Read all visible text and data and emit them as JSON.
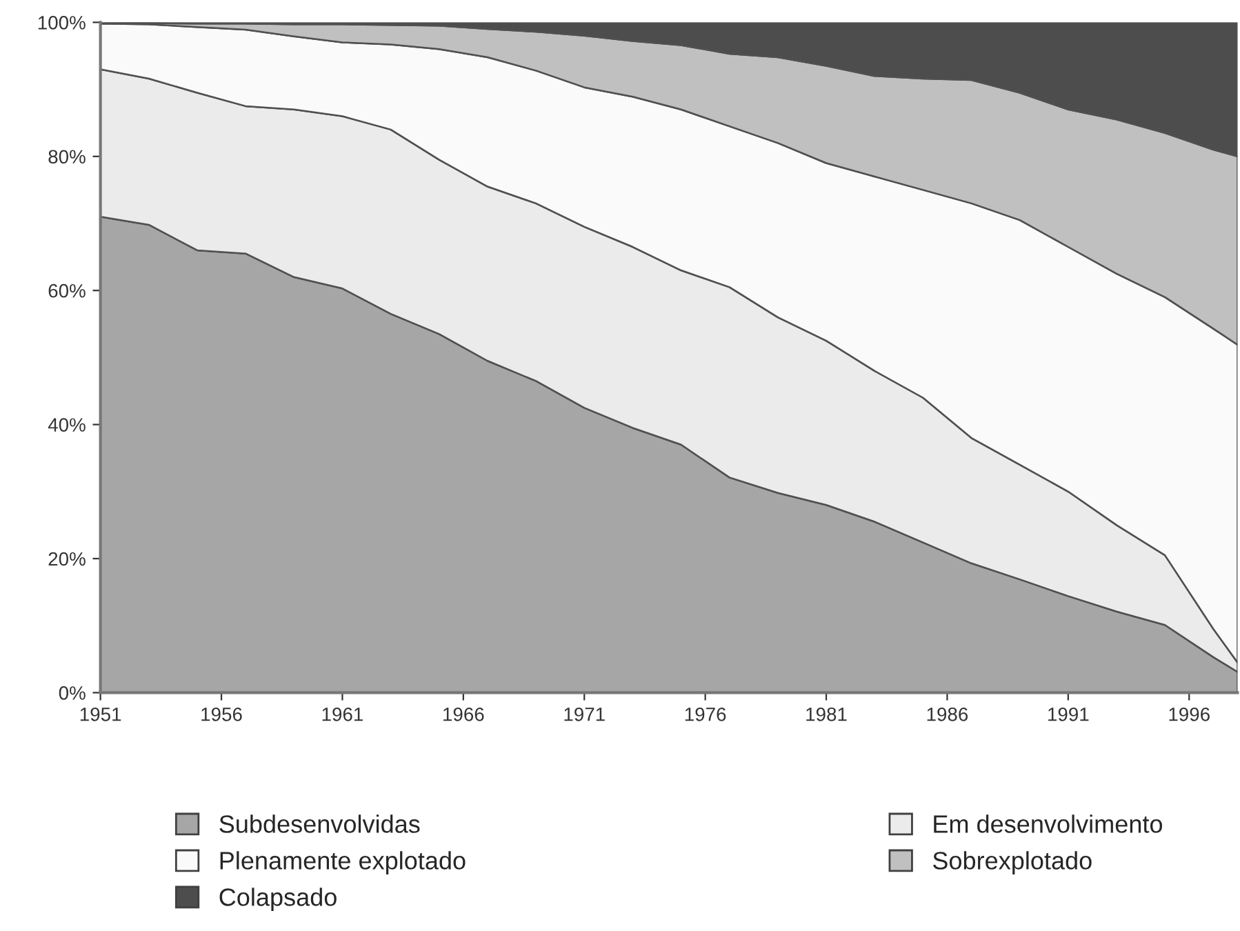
{
  "chart_data": {
    "type": "area",
    "stacked": true,
    "x": [
      1951,
      1953,
      1955,
      1957,
      1959,
      1961,
      1963,
      1965,
      1967,
      1969,
      1971,
      1973,
      1975,
      1977,
      1979,
      1981,
      1983,
      1985,
      1987,
      1989,
      1991,
      1993,
      1995,
      1997,
      1998
    ],
    "series": [
      {
        "name": "Subdesenvolvidas",
        "color": "#a6a6a6",
        "values": [
          71.0,
          69.8,
          66.0,
          65.5,
          62.0,
          60.3,
          56.5,
          53.5,
          49.5,
          46.5,
          42.5,
          39.5,
          37.0,
          32.1,
          29.8,
          28.0,
          25.5,
          22.4,
          19.3,
          16.9,
          14.4,
          12.1,
          10.1,
          5.3,
          3.1
        ]
      },
      {
        "name": "Em desenvolvimento",
        "color": "#ebebeb",
        "values": [
          22.0,
          21.8,
          23.5,
          22.0,
          25.0,
          25.7,
          27.5,
          26.0,
          26.0,
          26.5,
          27.0,
          27.0,
          26.0,
          28.4,
          26.2,
          24.5,
          22.5,
          21.6,
          18.7,
          17.1,
          15.6,
          12.9,
          10.4,
          4.2,
          1.4
        ]
      },
      {
        "name": "Plenamente explotado",
        "color": "#fafafa",
        "values": [
          6.8,
          8.1,
          9.8,
          11.4,
          10.9,
          11.0,
          12.7,
          16.5,
          19.3,
          19.8,
          20.8,
          22.4,
          24.0,
          24.0,
          26.0,
          26.5,
          29.0,
          31.0,
          35.0,
          36.5,
          36.5,
          37.5,
          38.5,
          44.8,
          47.4
        ]
      },
      {
        "name": "Sobrexplotado",
        "color": "#c0c0c0",
        "values": [
          0.2,
          0.2,
          0.5,
          0.9,
          1.8,
          2.7,
          2.9,
          3.5,
          4.2,
          5.8,
          7.7,
          8.3,
          9.6,
          10.8,
          12.8,
          14.5,
          15.0,
          16.6,
          18.4,
          19.0,
          20.5,
          23.0,
          24.5,
          26.7,
          28.1
        ]
      },
      {
        "name": "Colapsado",
        "color": "#4d4d4d",
        "values": [
          0,
          0.1,
          0.2,
          0.2,
          0.3,
          0.3,
          0.4,
          0.5,
          1.0,
          1.4,
          2.0,
          2.8,
          3.4,
          4.7,
          5.2,
          6.5,
          8.0,
          8.4,
          8.6,
          10.5,
          13.0,
          14.5,
          16.5,
          19.0,
          20.0
        ]
      }
    ],
    "xlim": [
      1951,
      1998
    ],
    "xticks": [
      1951,
      1956,
      1961,
      1966,
      1971,
      1976,
      1981,
      1986,
      1991,
      1996
    ],
    "ylim": [
      0,
      100
    ],
    "yticks": [
      {
        "value": 0,
        "label": "0%"
      },
      {
        "value": 20,
        "label": "20%"
      },
      {
        "value": 40,
        "label": "40%"
      },
      {
        "value": 60,
        "label": "60%"
      },
      {
        "value": 80,
        "label": "80%"
      },
      {
        "value": 100,
        "label": "100%"
      }
    ],
    "grid": false,
    "legend": "bottom"
  }
}
